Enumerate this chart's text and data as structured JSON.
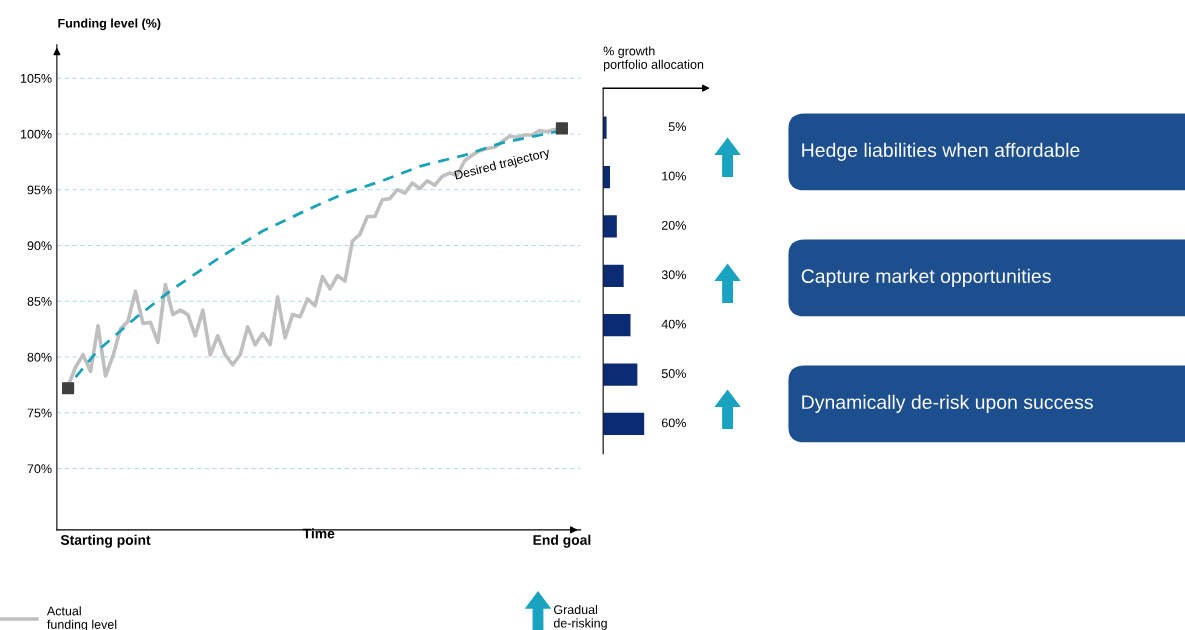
{
  "chart_data": [
    {
      "type": "line",
      "ylabel": "Funding level (%)",
      "xlabel": "Time",
      "categories": [
        null,
        null,
        null,
        null,
        null,
        "Starting point",
        null,
        null,
        null,
        null,
        null,
        null,
        null,
        null,
        null,
        null,
        null,
        null,
        null,
        null,
        null,
        null,
        null,
        null,
        null,
        null,
        null,
        null,
        null,
        null,
        null,
        null,
        null,
        null,
        null,
        null,
        null,
        null,
        null,
        null,
        null,
        null,
        null,
        null,
        null,
        null,
        null,
        null,
        null,
        null,
        null,
        null,
        null,
        null,
        null,
        null,
        null,
        null,
        null,
        null,
        null,
        null,
        null,
        null,
        null,
        null,
        "End goal"
      ],
      "ylim": [
        64.5,
        108
      ],
      "yticks": [
        {
          "value": 70,
          "label": "70%"
        },
        {
          "value": 75,
          "label": "75%"
        },
        {
          "value": 80,
          "label": "80%"
        },
        {
          "value": 85,
          "label": "85%"
        },
        {
          "value": 90,
          "label": "90%"
        },
        {
          "value": 95,
          "label": "95%"
        },
        {
          "value": 100,
          "label": "100%"
        },
        {
          "value": 105,
          "label": "105%"
        }
      ],
      "grid": "y",
      "legend": "bottom left",
      "series": [
        {
          "name": "Actual\nfunding level",
          "color": "#bfbfbf",
          "line_style": "solid",
          "values": [
            77.4,
            79.1,
            80.2,
            78.7,
            82.8,
            78.3,
            80.1,
            82.5,
            83.2,
            85.9,
            83.0,
            83.1,
            81.3,
            86.5,
            83.8,
            84.2,
            83.8,
            81.9,
            84.2,
            80.2,
            81.9,
            80.2,
            79.3,
            80.2,
            82.7,
            81.1,
            82.1,
            81.1,
            85.4,
            81.7,
            83.8,
            83.6,
            85.2,
            84.6,
            87.2,
            86.1,
            87.3,
            86.8,
            90.4,
            91.0,
            92.6,
            92.6,
            94.1,
            94.2,
            95.0,
            94.7,
            95.6,
            95.1,
            95.8,
            95.4,
            96.2,
            96.5,
            96.3,
            97.6,
            98.1,
            98.5,
            98.7,
            98.8,
            99.3,
            99.8,
            99.7,
            99.9,
            99.9,
            100.3,
            100.2,
            100.4,
            100.4
          ]
        },
        {
          "name": "Desired trajectory",
          "color": "#1aa3b8",
          "line_style": "dashed",
          "values": [
            null,
            78.2,
            null,
            null,
            80.6,
            null,
            null,
            null,
            null,
            83.5,
            null,
            null,
            null,
            null,
            86.1,
            null,
            null,
            null,
            null,
            null,
            88.8,
            null,
            null,
            null,
            null,
            null,
            91.3,
            null,
            null,
            null,
            null,
            null,
            93.2,
            null,
            null,
            null,
            null,
            94.7,
            null,
            null,
            null,
            null,
            95.8,
            null,
            null,
            null,
            null,
            97.1,
            null,
            null,
            null,
            null,
            null,
            98.1,
            null,
            null,
            null,
            null,
            99.2,
            null,
            null,
            null,
            null,
            99.9,
            null,
            null,
            100.3
          ]
        },
        {
          "type": "scatter",
          "marker": "square",
          "color": "#404040",
          "values": [
            77.2,
            null,
            null,
            null,
            null,
            null,
            null,
            null,
            null,
            null,
            null,
            null,
            null,
            null,
            null,
            null,
            null,
            null,
            null,
            null,
            null,
            null,
            null,
            null,
            null,
            null,
            null,
            null,
            null,
            null,
            null,
            null,
            null,
            null,
            null,
            null,
            null,
            null,
            null,
            null,
            null,
            null,
            null,
            null,
            null,
            null,
            null,
            null,
            null,
            null,
            null,
            null,
            null,
            null,
            null,
            null,
            null,
            null,
            null,
            null,
            null,
            null,
            null,
            null,
            null,
            null,
            100.5
          ]
        }
      ]
    },
    {
      "type": "bar",
      "orientation": "horizontal",
      "title": "% growth\nportfolio allocation",
      "categories": [
        null,
        null,
        null,
        null,
        null,
        null,
        null
      ],
      "values": [
        5,
        10,
        20,
        30,
        40,
        50,
        60
      ],
      "color": "#0b2c74",
      "value_labels": [
        "5%",
        "10%",
        "20%",
        "30%",
        "40%",
        "50%",
        "60%"
      ],
      "annotations": [
        "Gradual\nde-risking"
      ]
    },
    {
      "type": "other",
      "color": "#1d4f8f",
      "annotations": [
        "Hedge liabilities when affordable",
        "Capture market opportunities",
        "Dynamically de-risk upon success"
      ]
    }
  ]
}
